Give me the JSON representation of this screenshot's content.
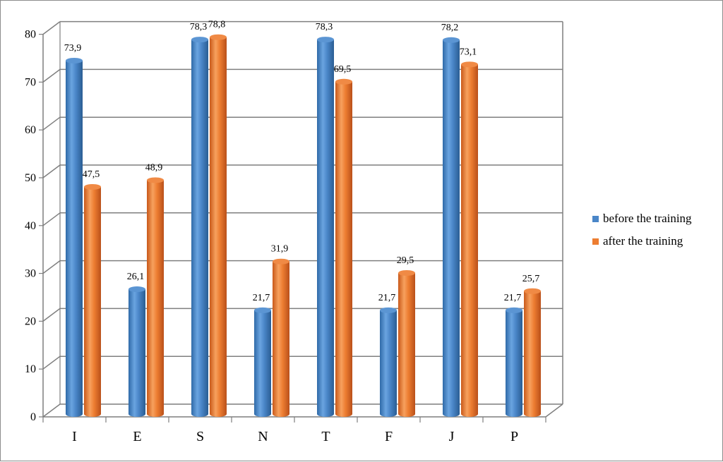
{
  "chart_data": {
    "type": "bar",
    "categories": [
      "I",
      "E",
      "S",
      "N",
      "T",
      "F",
      "J",
      "P"
    ],
    "series": [
      {
        "name": "before the training",
        "values": [
          73.9,
          26.1,
          78.3,
          21.7,
          78.3,
          21.7,
          78.2,
          21.7
        ],
        "labels": [
          "73,9",
          "26,1",
          "78,3",
          "21,7",
          "78,3",
          "21,7",
          "78,2",
          "21,7"
        ],
        "color": "#4a86c8"
      },
      {
        "name": "after the training",
        "values": [
          47.5,
          48.9,
          78.8,
          31.9,
          69.5,
          29.5,
          73.1,
          25.7
        ],
        "labels": [
          "47,5",
          "48,9",
          "78,8",
          "31,9",
          "69,5",
          "29,5",
          "73,1",
          "25,7"
        ],
        "color": "#ed7d31"
      }
    ],
    "yticks": [
      "0",
      "10",
      "20",
      "30",
      "40",
      "50",
      "60",
      "70",
      "80"
    ],
    "ylim": [
      0,
      80
    ],
    "grid": true,
    "legend_position": "right",
    "style": "3d-cylinder"
  }
}
